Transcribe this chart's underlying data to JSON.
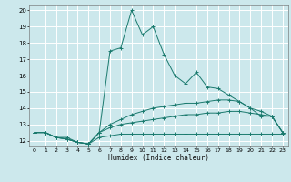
{
  "xlabel": "Humidex (Indice chaleur)",
  "bg_color": "#cce8ec",
  "grid_color": "#ffffff",
  "line_color": "#1a7a6e",
  "xlim": [
    -0.5,
    23.5
  ],
  "ylim": [
    11.7,
    20.3
  ],
  "xticks": [
    0,
    1,
    2,
    3,
    4,
    5,
    6,
    7,
    8,
    9,
    10,
    11,
    12,
    13,
    14,
    15,
    16,
    17,
    18,
    19,
    20,
    21,
    22,
    23
  ],
  "yticks": [
    12,
    13,
    14,
    15,
    16,
    17,
    18,
    19,
    20
  ],
  "series": [
    {
      "x": [
        0,
        1,
        2,
        3,
        4,
        5,
        6,
        7,
        8,
        9,
        10,
        11,
        12,
        13,
        14,
        15,
        16,
        17,
        18,
        19,
        20,
        21,
        22,
        23
      ],
      "y": [
        12.5,
        12.5,
        12.2,
        12.2,
        11.9,
        11.8,
        12.5,
        17.5,
        17.7,
        20.0,
        18.5,
        19.0,
        17.3,
        16.0,
        15.5,
        16.2,
        15.3,
        15.2,
        14.8,
        14.4,
        14.0,
        13.5,
        13.5,
        12.5
      ]
    },
    {
      "x": [
        0,
        1,
        2,
        3,
        4,
        5,
        6,
        7,
        8,
        9,
        10,
        11,
        12,
        13,
        14,
        15,
        16,
        17,
        18,
        19,
        20,
        21,
        22,
        23
      ],
      "y": [
        12.5,
        12.5,
        12.2,
        12.1,
        11.9,
        11.8,
        12.5,
        13.0,
        13.3,
        13.6,
        13.8,
        14.0,
        14.1,
        14.2,
        14.3,
        14.3,
        14.4,
        14.5,
        14.5,
        14.4,
        14.0,
        13.8,
        13.5,
        12.5
      ]
    },
    {
      "x": [
        0,
        1,
        2,
        3,
        4,
        5,
        6,
        7,
        8,
        9,
        10,
        11,
        12,
        13,
        14,
        15,
        16,
        17,
        18,
        19,
        20,
        21,
        22,
        23
      ],
      "y": [
        12.5,
        12.5,
        12.2,
        12.1,
        11.9,
        11.8,
        12.5,
        12.8,
        13.0,
        13.1,
        13.2,
        13.3,
        13.4,
        13.5,
        13.6,
        13.6,
        13.7,
        13.7,
        13.8,
        13.8,
        13.7,
        13.6,
        13.5,
        12.5
      ]
    },
    {
      "x": [
        0,
        1,
        2,
        3,
        4,
        5,
        6,
        7,
        8,
        9,
        10,
        11,
        12,
        13,
        14,
        15,
        16,
        17,
        18,
        19,
        20,
        21,
        22,
        23
      ],
      "y": [
        12.5,
        12.5,
        12.2,
        12.1,
        11.9,
        11.8,
        12.2,
        12.3,
        12.4,
        12.4,
        12.4,
        12.4,
        12.4,
        12.4,
        12.4,
        12.4,
        12.4,
        12.4,
        12.4,
        12.4,
        12.4,
        12.4,
        12.4,
        12.4
      ]
    }
  ]
}
